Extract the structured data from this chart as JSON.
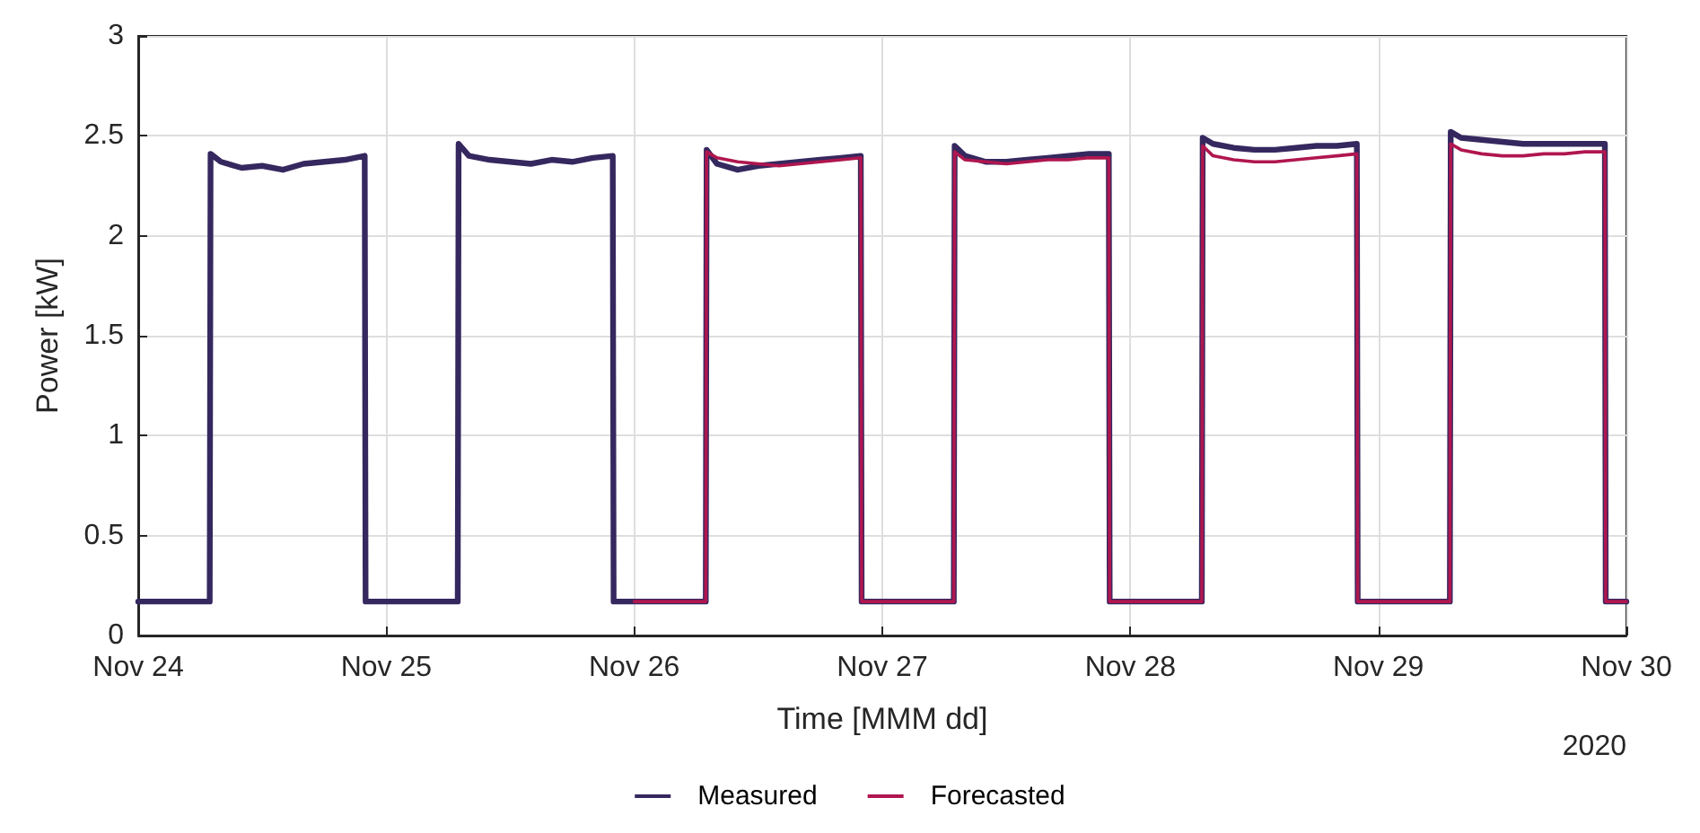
{
  "chart_data": {
    "type": "line",
    "xlabel": "Time [MMM dd]",
    "ylabel": "Power [kW]",
    "annotations": [
      "2020"
    ],
    "xlim": [
      "2020-11-24",
      "2020-11-30"
    ],
    "xticks": [
      {
        "value": "2020-11-24",
        "label": "Nov 24"
      },
      {
        "value": "2020-11-25",
        "label": "Nov 25"
      },
      {
        "value": "2020-11-26",
        "label": "Nov 26"
      },
      {
        "value": "2020-11-27",
        "label": "Nov 27"
      },
      {
        "value": "2020-11-28",
        "label": "Nov 28"
      },
      {
        "value": "2020-11-29",
        "label": "Nov 29"
      },
      {
        "value": "2020-11-30",
        "label": "Nov 30"
      }
    ],
    "ylim": [
      0,
      3
    ],
    "yticks": [
      0,
      0.5,
      1,
      1.5,
      2,
      2.5,
      3
    ],
    "grid": true,
    "legend": "bottom",
    "marker": "none",
    "line_style": "solid",
    "series": [
      {
        "name": "Measured",
        "color": "#35285f",
        "x": [
          "2020-11-24T00:00",
          "2020-11-24T06:55",
          "2020-11-24T07:00",
          "2020-11-24T08:00",
          "2020-11-24T10:00",
          "2020-11-24T12:00",
          "2020-11-24T14:00",
          "2020-11-24T16:00",
          "2020-11-24T18:00",
          "2020-11-24T20:00",
          "2020-11-24T21:55",
          "2020-11-24T22:00",
          "2020-11-25T06:55",
          "2020-11-25T07:00",
          "2020-11-25T08:00",
          "2020-11-25T10:00",
          "2020-11-25T12:00",
          "2020-11-25T14:00",
          "2020-11-25T16:00",
          "2020-11-25T18:00",
          "2020-11-25T20:00",
          "2020-11-25T21:55",
          "2020-11-25T22:00",
          "2020-11-26T06:55",
          "2020-11-26T07:00",
          "2020-11-26T08:00",
          "2020-11-26T10:00",
          "2020-11-26T12:00",
          "2020-11-26T14:00",
          "2020-11-26T16:00",
          "2020-11-26T18:00",
          "2020-11-26T20:00",
          "2020-11-26T21:55",
          "2020-11-26T22:00",
          "2020-11-27T06:55",
          "2020-11-27T07:00",
          "2020-11-27T08:00",
          "2020-11-27T10:00",
          "2020-11-27T12:00",
          "2020-11-27T14:00",
          "2020-11-27T16:00",
          "2020-11-27T18:00",
          "2020-11-27T20:00",
          "2020-11-27T21:55",
          "2020-11-27T22:00",
          "2020-11-28T06:55",
          "2020-11-28T07:00",
          "2020-11-28T08:00",
          "2020-11-28T10:00",
          "2020-11-28T12:00",
          "2020-11-28T14:00",
          "2020-11-28T16:00",
          "2020-11-28T18:00",
          "2020-11-28T20:00",
          "2020-11-28T21:55",
          "2020-11-28T22:00",
          "2020-11-29T06:55",
          "2020-11-29T07:00",
          "2020-11-29T08:00",
          "2020-11-29T10:00",
          "2020-11-29T12:00",
          "2020-11-29T14:00",
          "2020-11-29T16:00",
          "2020-11-29T18:00",
          "2020-11-29T20:00",
          "2020-11-29T21:55",
          "2020-11-29T22:00",
          "2020-11-30T00:00"
        ],
        "values": [
          0.17,
          0.17,
          2.41,
          2.37,
          2.34,
          2.35,
          2.33,
          2.36,
          2.37,
          2.38,
          2.4,
          0.17,
          0.17,
          2.46,
          2.4,
          2.38,
          2.37,
          2.36,
          2.38,
          2.37,
          2.39,
          2.4,
          0.17,
          0.17,
          2.43,
          2.36,
          2.33,
          2.35,
          2.36,
          2.37,
          2.38,
          2.39,
          2.4,
          0.17,
          0.17,
          2.45,
          2.4,
          2.37,
          2.37,
          2.38,
          2.39,
          2.4,
          2.41,
          2.41,
          0.17,
          0.17,
          2.49,
          2.46,
          2.44,
          2.43,
          2.43,
          2.44,
          2.45,
          2.45,
          2.46,
          0.17,
          0.17,
          2.52,
          2.49,
          2.48,
          2.47,
          2.46,
          2.46,
          2.46,
          2.46,
          2.46,
          0.17,
          0.17
        ]
      },
      {
        "name": "Forecasted",
        "color": "#b0164f",
        "x": [
          "2020-11-26T00:00",
          "2020-11-26T06:55",
          "2020-11-26T07:00",
          "2020-11-26T08:00",
          "2020-11-26T10:00",
          "2020-11-26T12:00",
          "2020-11-26T14:00",
          "2020-11-26T16:00",
          "2020-11-26T18:00",
          "2020-11-26T20:00",
          "2020-11-26T21:55",
          "2020-11-26T22:00",
          "2020-11-27T06:55",
          "2020-11-27T07:00",
          "2020-11-27T08:00",
          "2020-11-27T10:00",
          "2020-11-27T12:00",
          "2020-11-27T14:00",
          "2020-11-27T16:00",
          "2020-11-27T18:00",
          "2020-11-27T20:00",
          "2020-11-27T21:55",
          "2020-11-27T22:00",
          "2020-11-28T06:55",
          "2020-11-28T07:00",
          "2020-11-28T08:00",
          "2020-11-28T10:00",
          "2020-11-28T12:00",
          "2020-11-28T14:00",
          "2020-11-28T16:00",
          "2020-11-28T18:00",
          "2020-11-28T20:00",
          "2020-11-28T21:55",
          "2020-11-28T22:00",
          "2020-11-29T06:55",
          "2020-11-29T07:00",
          "2020-11-29T08:00",
          "2020-11-29T10:00",
          "2020-11-29T12:00",
          "2020-11-29T14:00",
          "2020-11-29T16:00",
          "2020-11-29T18:00",
          "2020-11-29T20:00",
          "2020-11-29T21:55",
          "2020-11-29T22:00",
          "2020-11-30T00:00"
        ],
        "values": [
          0.17,
          0.17,
          2.42,
          2.39,
          2.37,
          2.36,
          2.35,
          2.36,
          2.37,
          2.38,
          2.39,
          0.17,
          0.17,
          2.42,
          2.38,
          2.37,
          2.36,
          2.37,
          2.38,
          2.38,
          2.39,
          2.39,
          0.17,
          0.17,
          2.45,
          2.4,
          2.38,
          2.37,
          2.37,
          2.38,
          2.39,
          2.4,
          2.41,
          0.17,
          0.17,
          2.46,
          2.43,
          2.41,
          2.4,
          2.4,
          2.41,
          2.41,
          2.42,
          2.42,
          0.17,
          0.17
        ]
      }
    ]
  }
}
